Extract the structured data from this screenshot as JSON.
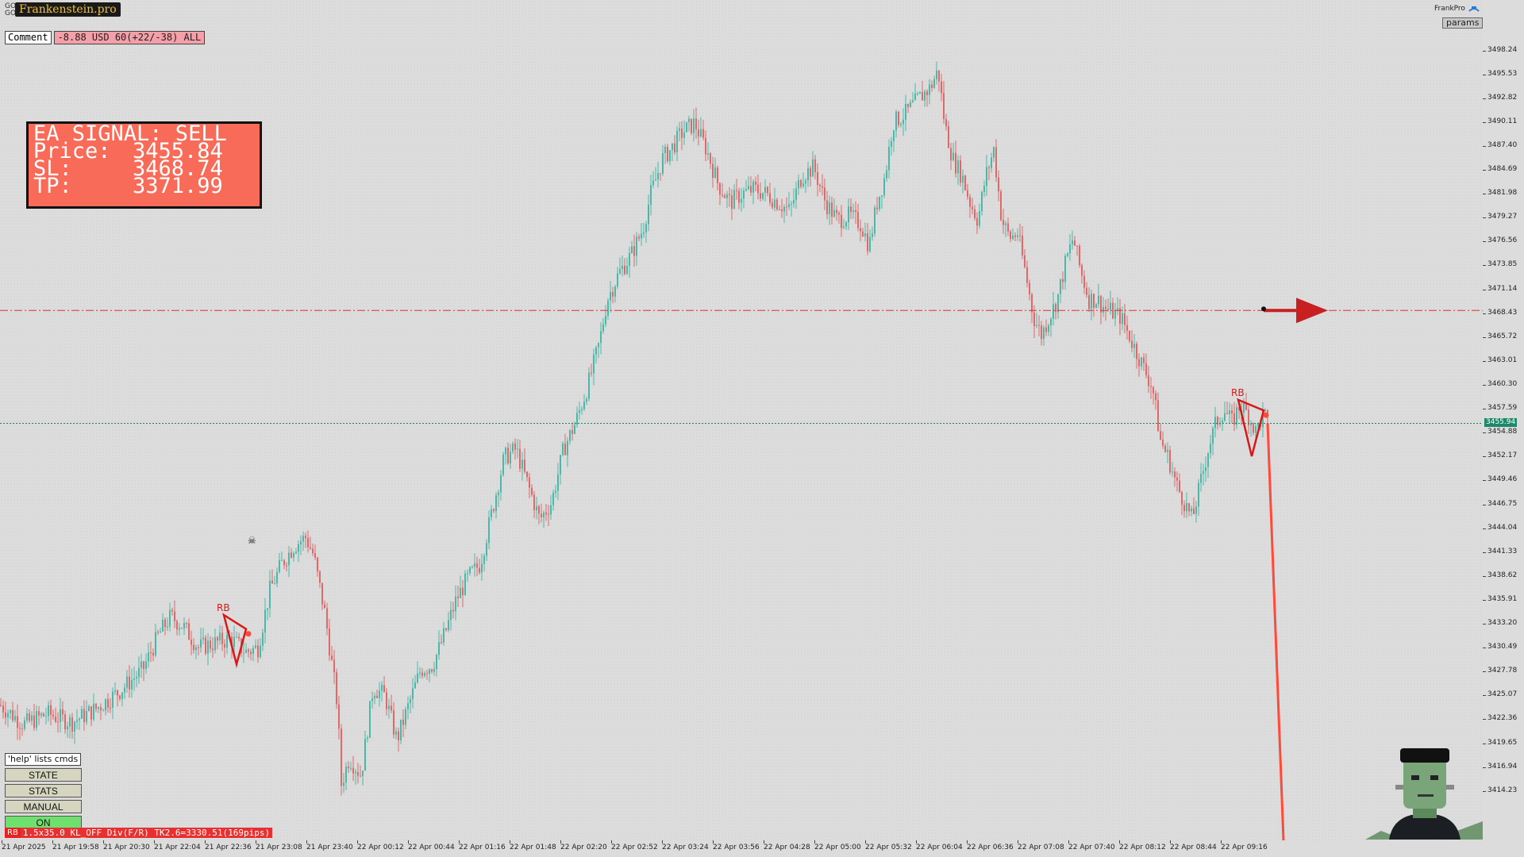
{
  "header": {
    "symbol_lines": [
      "GOLD",
      "GOLD,M1"
    ],
    "brand": "Frankenstein.pro",
    "comment_label": "Comment",
    "pnl_text": "-8.88 USD 60(+22/-38) ALL"
  },
  "signal_box": {
    "title": "EA SIGNAL: SELL",
    "rows": [
      {
        "key": "Price:",
        "value": "3455.84"
      },
      {
        "key": "SL:",
        "value": "3468.74"
      },
      {
        "key": "TP:",
        "value": "3371.99"
      }
    ],
    "color": "#f86b58"
  },
  "top_right": {
    "name": "FrankPro",
    "params_label": "params"
  },
  "cmd_panel": {
    "help_label": "'help' lists cmds",
    "buttons": [
      "STATE",
      "STATS",
      "MANUAL",
      "ON"
    ]
  },
  "status_bar": {
    "badge": "RB",
    "text": "1.5x35.0 KL_OFF Div(F/R) TK2.6=3330.51(169pips)"
  },
  "pattern_labels": [
    "RB",
    "RB"
  ],
  "current_price": "3455.94",
  "chart_data": {
    "type": "candlestick",
    "title": "",
    "y_ticks": [
      "3498.24",
      "3495.53",
      "3492.82",
      "3490.11",
      "3487.40",
      "3484.69",
      "3481.98",
      "3479.27",
      "3476.56",
      "3473.85",
      "3471.14",
      "3468.43",
      "3465.72",
      "3463.01",
      "3460.30",
      "3457.59",
      "3454.88",
      "3452.17",
      "3449.46",
      "3446.75",
      "3444.04",
      "3441.33",
      "3438.62",
      "3435.91",
      "3433.20",
      "3430.49",
      "3427.78",
      "3425.07",
      "3422.36",
      "3419.65",
      "3416.94",
      "3414.23"
    ],
    "x_ticks": [
      "21 Apr 2025",
      "21 Apr 19:58",
      "21 Apr 20:30",
      "21 Apr 22:04",
      "21 Apr 22:36",
      "21 Apr 23:08",
      "21 Apr 23:40",
      "22 Apr 00:12",
      "22 Apr 00:44",
      "22 Apr 01:16",
      "22 Apr 01:48",
      "22 Apr 02:20",
      "22 Apr 02:52",
      "22 Apr 03:24",
      "22 Apr 03:56",
      "22 Apr 04:28",
      "22 Apr 05:00",
      "22 Apr 05:32",
      "22 Apr 06:04",
      "22 Apr 06:36",
      "22 Apr 07:08",
      "22 Apr 07:40",
      "22 Apr 08:12",
      "22 Apr 08:44",
      "22 Apr 09:16"
    ],
    "ylim": [
      3411.6,
      3500.9
    ],
    "price_path": [
      [
        0,
        3424.0
      ],
      [
        30,
        3421.8
      ],
      [
        60,
        3423.0
      ],
      [
        90,
        3422.0
      ],
      [
        120,
        3423.5
      ],
      [
        150,
        3425.5
      ],
      [
        180,
        3428.0
      ],
      [
        200,
        3432.0
      ],
      [
        215,
        3434.0
      ],
      [
        230,
        3433.0
      ],
      [
        250,
        3430.5
      ],
      [
        270,
        3431.0
      ],
      [
        290,
        3431.5
      ],
      [
        310,
        3430.0
      ],
      [
        325,
        3430.5
      ],
      [
        340,
        3437.0
      ],
      [
        355,
        3440.0
      ],
      [
        370,
        3442.0
      ],
      [
        385,
        3443.0
      ],
      [
        395,
        3441.0
      ],
      [
        410,
        3434.0
      ],
      [
        425,
        3424.0
      ],
      [
        430,
        3415.0
      ],
      [
        440,
        3418.0
      ],
      [
        455,
        3416.0
      ],
      [
        470,
        3426.0
      ],
      [
        485,
        3425.0
      ],
      [
        500,
        3420.0
      ],
      [
        515,
        3424.0
      ],
      [
        530,
        3428.0
      ],
      [
        545,
        3428.5
      ],
      [
        560,
        3432.0
      ],
      [
        575,
        3436.0
      ],
      [
        590,
        3438.5
      ],
      [
        605,
        3440.0
      ],
      [
        620,
        3446.0
      ],
      [
        635,
        3452.0
      ],
      [
        650,
        3453.0
      ],
      [
        665,
        3449.0
      ],
      [
        680,
        3445.0
      ],
      [
        695,
        3447.0
      ],
      [
        710,
        3453.0
      ],
      [
        725,
        3456.0
      ],
      [
        740,
        3460.0
      ],
      [
        755,
        3465.0
      ],
      [
        765,
        3470.0
      ],
      [
        780,
        3473.0
      ],
      [
        795,
        3475.0
      ],
      [
        810,
        3478.0
      ],
      [
        820,
        3482.0
      ],
      [
        835,
        3486.0
      ],
      [
        845,
        3487.0
      ],
      [
        860,
        3489.0
      ],
      [
        875,
        3490.0
      ],
      [
        890,
        3487.0
      ],
      [
        905,
        3483.0
      ],
      [
        920,
        3481.0
      ],
      [
        935,
        3482.0
      ],
      [
        950,
        3482.5
      ],
      [
        965,
        3482.0
      ],
      [
        980,
        3481.0
      ],
      [
        995,
        3480.0
      ],
      [
        1010,
        3484.0
      ],
      [
        1025,
        3485.0
      ],
      [
        1040,
        3481.0
      ],
      [
        1055,
        3479.0
      ],
      [
        1070,
        3479.5
      ],
      [
        1085,
        3478.5
      ],
      [
        1095,
        3476.0
      ],
      [
        1105,
        3481.0
      ],
      [
        1115,
        3484.0
      ],
      [
        1125,
        3490.0
      ],
      [
        1140,
        3491.0
      ],
      [
        1150,
        3492.0
      ],
      [
        1160,
        3493.0
      ],
      [
        1172,
        3494.0
      ],
      [
        1182,
        3496.0
      ],
      [
        1190,
        3490.0
      ],
      [
        1200,
        3486.0
      ],
      [
        1212,
        3484.0
      ],
      [
        1222,
        3481.0
      ],
      [
        1232,
        3479.0
      ],
      [
        1242,
        3484.0
      ],
      [
        1252,
        3487.0
      ],
      [
        1262,
        3479.0
      ],
      [
        1272,
        3477.0
      ],
      [
        1282,
        3477.5
      ],
      [
        1292,
        3473.0
      ],
      [
        1302,
        3468.0
      ],
      [
        1312,
        3466.0
      ],
      [
        1322,
        3468.0
      ],
      [
        1332,
        3470.0
      ],
      [
        1342,
        3474.0
      ],
      [
        1352,
        3477.0
      ],
      [
        1362,
        3473.0
      ],
      [
        1372,
        3470.0
      ],
      [
        1382,
        3470.0
      ],
      [
        1392,
        3469.0
      ],
      [
        1402,
        3468.5
      ],
      [
        1412,
        3468.0
      ],
      [
        1422,
        3466.0
      ],
      [
        1432,
        3464.0
      ],
      [
        1442,
        3462.0
      ],
      [
        1452,
        3460.0
      ],
      [
        1462,
        3454.0
      ],
      [
        1472,
        3452.0
      ],
      [
        1482,
        3449.0
      ],
      [
        1492,
        3447.0
      ],
      [
        1502,
        3445.0
      ],
      [
        1512,
        3449.0
      ],
      [
        1522,
        3453.0
      ],
      [
        1532,
        3456.0
      ],
      [
        1542,
        3457.5
      ],
      [
        1552,
        3456.0
      ],
      [
        1562,
        3458.0
      ],
      [
        1572,
        3457.0
      ],
      [
        1582,
        3455.0
      ],
      [
        1592,
        3457.0
      ],
      [
        1597,
        3455.9
      ]
    ],
    "sl_level": 3468.74,
    "current_level": 3455.94,
    "tp_projection_level": 3412.0
  }
}
